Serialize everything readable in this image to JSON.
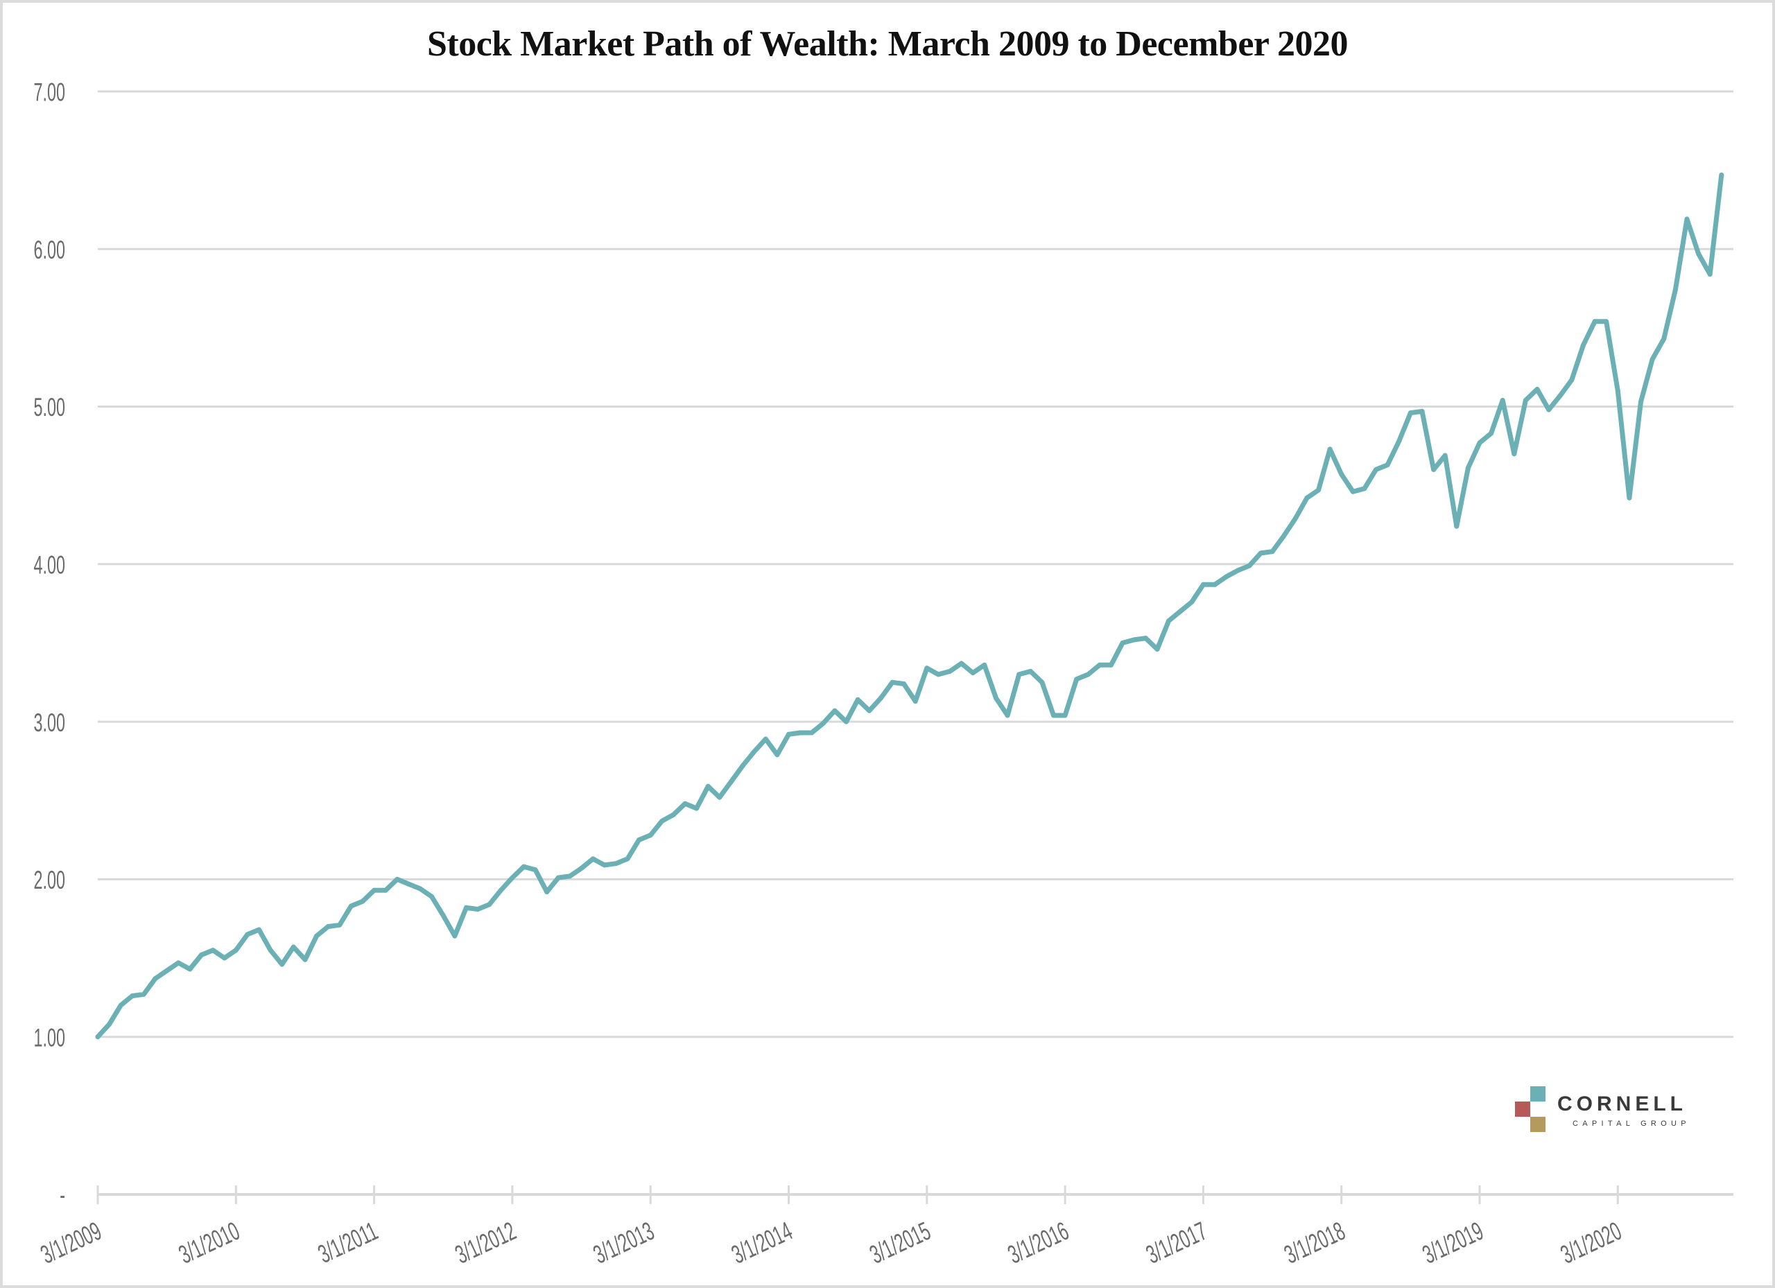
{
  "chart_data": {
    "type": "line",
    "title": "Stock Market Path of Wealth: March 2009 to December 2020",
    "xlabel": "",
    "ylabel": "",
    "x_start": "3/1/2009",
    "x_end": "12/1/2020",
    "x_frequency": "monthly",
    "ylim": [
      0,
      7
    ],
    "grid": true,
    "yticks": [
      {
        "value": 0,
        "label": "-"
      },
      {
        "value": 1,
        "label": "1.00"
      },
      {
        "value": 2,
        "label": "2.00"
      },
      {
        "value": 3,
        "label": "3.00"
      },
      {
        "value": 4,
        "label": "4.00"
      },
      {
        "value": 5,
        "label": "5.00"
      },
      {
        "value": 6,
        "label": "6.00"
      },
      {
        "value": 7,
        "label": "7.00"
      }
    ],
    "xticks": [
      {
        "month_index": 0,
        "label": "3/1/2009"
      },
      {
        "month_index": 12,
        "label": "3/1/2010"
      },
      {
        "month_index": 24,
        "label": "3/1/2011"
      },
      {
        "month_index": 36,
        "label": "3/1/2012"
      },
      {
        "month_index": 48,
        "label": "3/1/2013"
      },
      {
        "month_index": 60,
        "label": "3/1/2014"
      },
      {
        "month_index": 72,
        "label": "3/1/2015"
      },
      {
        "month_index": 84,
        "label": "3/1/2016"
      },
      {
        "month_index": 96,
        "label": "3/1/2017"
      },
      {
        "month_index": 108,
        "label": "3/1/2018"
      },
      {
        "month_index": 120,
        "label": "3/1/2019"
      },
      {
        "month_index": 132,
        "label": "3/1/2020"
      }
    ],
    "series": [
      {
        "name": "Path of Wealth",
        "color": "#6ab0b5",
        "values": [
          1.0,
          1.08,
          1.2,
          1.26,
          1.27,
          1.37,
          1.42,
          1.47,
          1.43,
          1.52,
          1.55,
          1.5,
          1.55,
          1.65,
          1.68,
          1.55,
          1.46,
          1.57,
          1.49,
          1.64,
          1.7,
          1.71,
          1.83,
          1.86,
          1.93,
          1.93,
          2.0,
          1.97,
          1.94,
          1.89,
          1.77,
          1.64,
          1.82,
          1.81,
          1.84,
          1.93,
          2.01,
          2.08,
          2.06,
          1.92,
          2.01,
          2.02,
          2.07,
          2.13,
          2.09,
          2.1,
          2.13,
          2.25,
          2.28,
          2.37,
          2.41,
          2.48,
          2.45,
          2.59,
          2.52,
          2.62,
          2.72,
          2.81,
          2.89,
          2.79,
          2.92,
          2.93,
          2.93,
          2.99,
          3.07,
          3.0,
          3.14,
          3.07,
          3.15,
          3.25,
          3.24,
          3.13,
          3.34,
          3.3,
          3.32,
          3.37,
          3.31,
          3.36,
          3.15,
          3.04,
          3.3,
          3.32,
          3.25,
          3.04,
          3.04,
          3.27,
          3.3,
          3.36,
          3.36,
          3.5,
          3.52,
          3.53,
          3.46,
          3.64,
          3.7,
          3.76,
          3.87,
          3.87,
          3.92,
          3.96,
          3.99,
          4.07,
          4.08,
          4.18,
          4.29,
          4.42,
          4.47,
          4.73,
          4.57,
          4.46,
          4.48,
          4.6,
          4.63,
          4.78,
          4.96,
          4.97,
          4.6,
          4.69,
          4.24,
          4.61,
          4.77,
          4.83,
          5.04,
          4.7,
          5.04,
          5.11,
          4.98,
          5.07,
          5.17,
          5.39,
          5.54,
          5.54,
          5.1,
          4.42,
          5.03,
          5.3,
          5.43,
          5.74,
          6.19,
          5.97,
          5.84,
          6.47
        ]
      }
    ],
    "legend": "none"
  },
  "logo": {
    "name": "CORNELL",
    "subtitle": "CAPITAL GROUP",
    "colors": {
      "teal": "#6ab0b5",
      "red": "#b55a58",
      "gold": "#b59a5e"
    }
  },
  "colors": {
    "line": "#6ab0b5",
    "grid": "#d9d9d9",
    "tick_text": "#6b6b6b",
    "border": "#dcdcdc"
  }
}
